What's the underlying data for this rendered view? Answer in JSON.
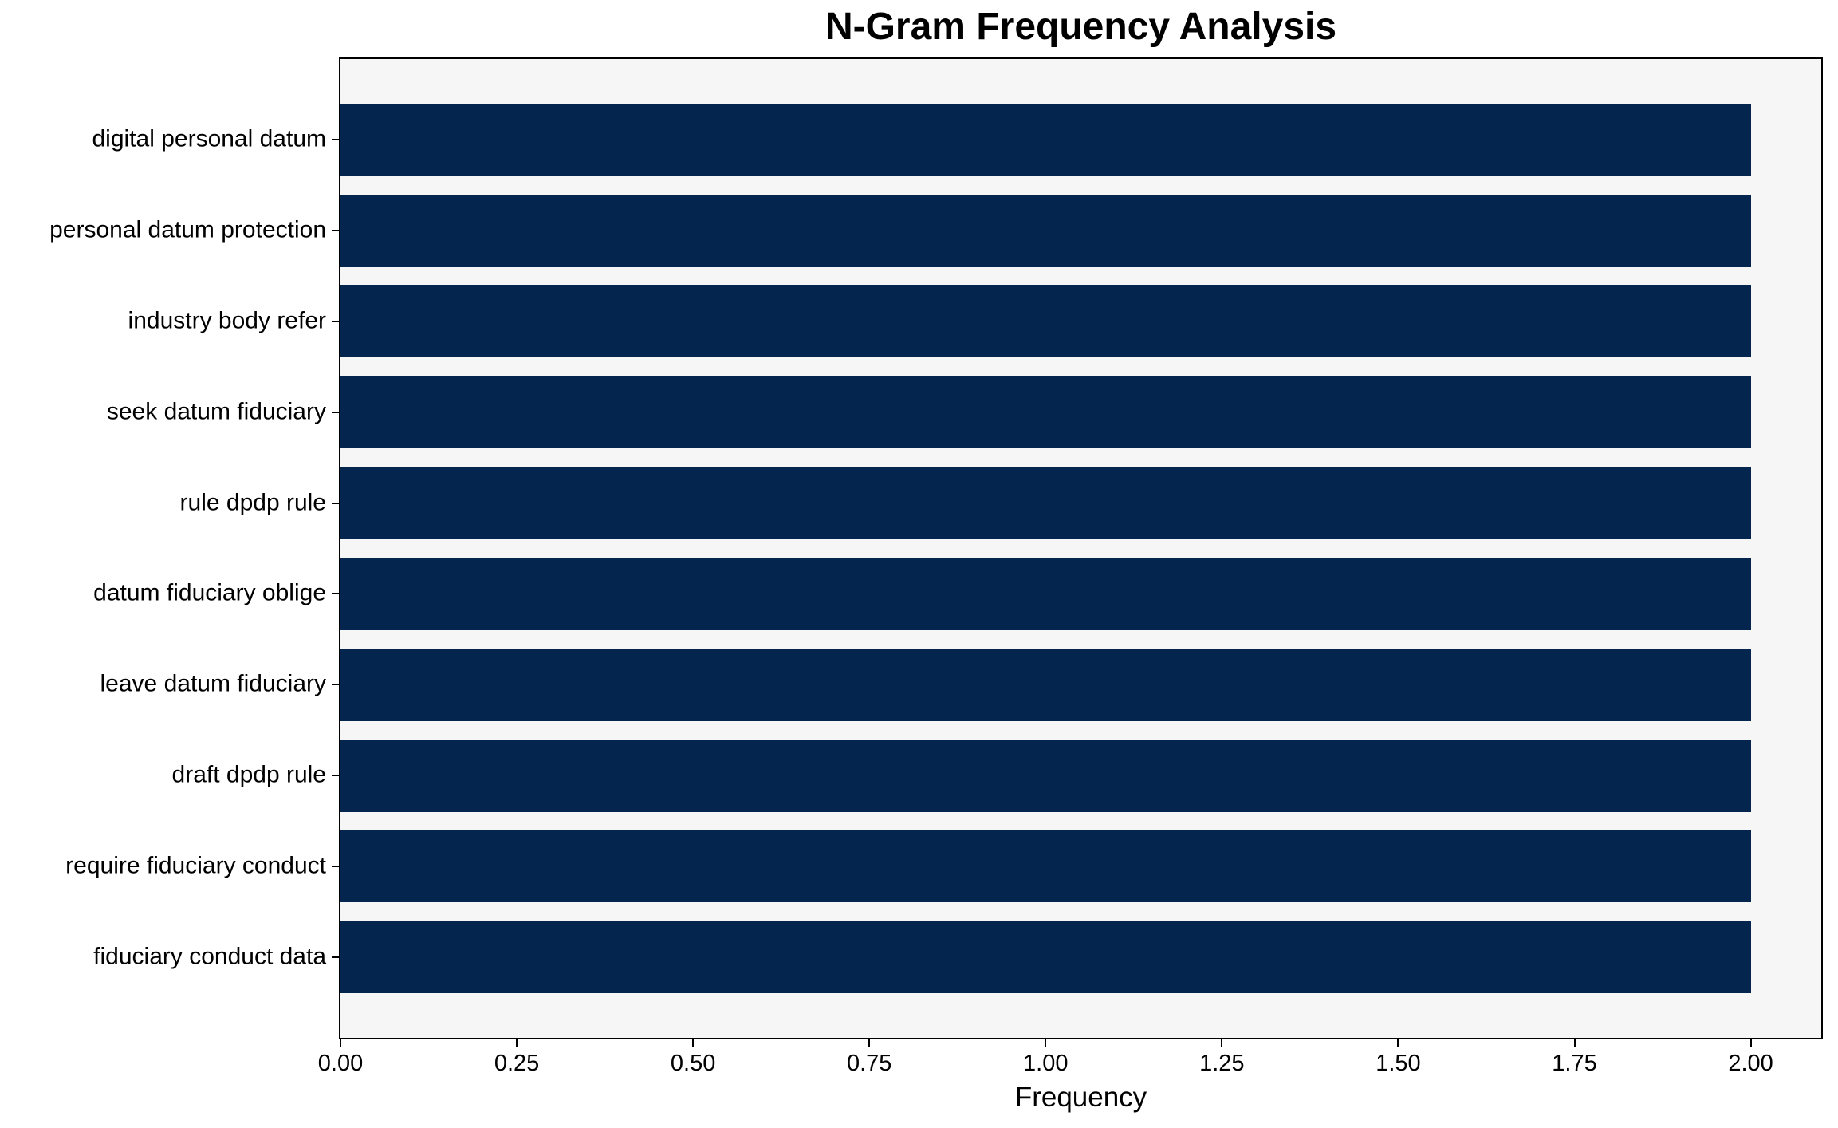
{
  "chart_data": {
    "type": "bar",
    "orientation": "horizontal",
    "title": "N-Gram Frequency Analysis",
    "xlabel": "Frequency",
    "ylabel": "",
    "categories": [
      "digital personal datum",
      "personal datum protection",
      "industry body refer",
      "seek datum fiduciary",
      "rule dpdp rule",
      "datum fiduciary oblige",
      "leave datum fiduciary",
      "draft dpdp rule",
      "require fiduciary conduct",
      "fiduciary conduct data"
    ],
    "values": [
      2,
      2,
      2,
      2,
      2,
      2,
      2,
      2,
      2,
      2
    ],
    "xlim": [
      0,
      2.1
    ],
    "xtick_values": [
      0,
      0.25,
      0.5,
      0.75,
      1.0,
      1.25,
      1.5,
      1.75,
      2.0
    ],
    "xtick_labels": [
      "0.00",
      "0.25",
      "0.50",
      "0.75",
      "1.00",
      "1.25",
      "1.50",
      "1.75",
      "2.00"
    ],
    "bar_relative_height": 0.8,
    "grid": false,
    "legend": false,
    "colors": {
      "bar": "#03254e",
      "plot_background": "#f6f6f6",
      "figure_background": "#ffffff",
      "spine": "#000000",
      "text": "#000000"
    }
  }
}
